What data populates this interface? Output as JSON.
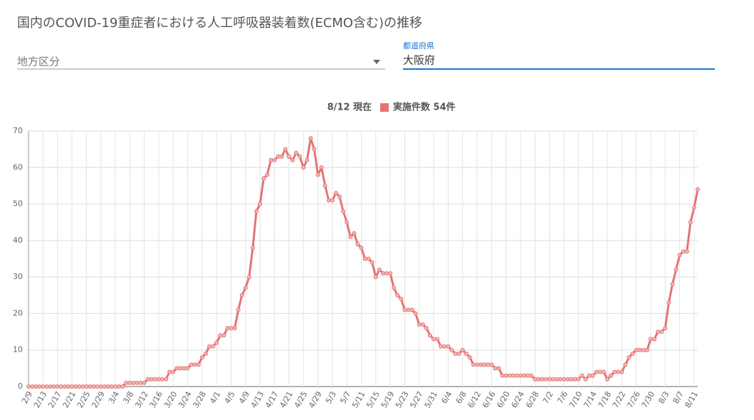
{
  "page": {
    "title": "国内のCOVID-19重症者における人工呼吸器装着数(ECMO含む)の推移",
    "region_select": {
      "placeholder": "地方区分"
    },
    "prefecture_select": {
      "label": "都道府県",
      "value": "大阪府"
    }
  },
  "chart_data": {
    "type": "line",
    "subtitle": "8/12 現在",
    "categories": [
      "2/9",
      null,
      null,
      null,
      "2/13",
      null,
      null,
      null,
      "2/17",
      null,
      null,
      null,
      "2/21",
      null,
      null,
      null,
      "2/25",
      null,
      null,
      null,
      "2/29",
      null,
      null,
      null,
      "3/4",
      null,
      null,
      null,
      "3/8",
      null,
      null,
      null,
      "3/12",
      null,
      null,
      null,
      "3/16",
      null,
      null,
      null,
      "3/20",
      null,
      null,
      null,
      "3/24",
      null,
      null,
      null,
      "3/28",
      null,
      null,
      null,
      "4/1",
      null,
      null,
      null,
      "4/5",
      null,
      null,
      null,
      "4/9",
      null,
      null,
      null,
      "4/13",
      null,
      null,
      null,
      "4/17",
      null,
      null,
      null,
      "4/21",
      null,
      null,
      null,
      "4/25",
      null,
      null,
      null,
      "4/29",
      null,
      null,
      null,
      "5/3",
      null,
      null,
      null,
      "5/7",
      null,
      null,
      null,
      "5/11",
      null,
      null,
      null,
      "5/15",
      null,
      null,
      null,
      "5/19",
      null,
      null,
      null,
      "5/23",
      null,
      null,
      null,
      "5/27",
      null,
      null,
      null,
      "5/31",
      null,
      null,
      null,
      "6/4",
      null,
      null,
      null,
      "6/8",
      null,
      null,
      null,
      "6/12",
      null,
      null,
      null,
      "6/16",
      null,
      null,
      null,
      "6/20",
      null,
      null,
      null,
      "6/24",
      null,
      null,
      null,
      "6/28",
      null,
      null,
      null,
      "7/2",
      null,
      null,
      null,
      "7/6",
      null,
      null,
      null,
      "7/10",
      null,
      null,
      null,
      "7/14",
      null,
      null,
      null,
      "7/18",
      null,
      null,
      null,
      "7/22",
      null,
      null,
      null,
      "7/26",
      null,
      null,
      null,
      "7/30",
      null,
      null,
      null,
      "8/3",
      null,
      null,
      null,
      "8/7",
      null,
      null,
      null,
      "8/11",
      null
    ],
    "series": [
      {
        "name": "実施件数 54件",
        "color": "#e57373",
        "values": [
          0,
          0,
          0,
          0,
          0,
          0,
          0,
          0,
          0,
          0,
          0,
          0,
          0,
          0,
          0,
          0,
          0,
          0,
          0,
          0,
          0,
          0,
          0,
          0,
          0,
          0,
          0,
          1,
          1,
          1,
          1,
          1,
          1,
          2,
          2,
          2,
          2,
          2,
          2,
          4,
          4,
          5,
          5,
          5,
          5,
          6,
          6,
          6,
          8,
          9,
          11,
          11,
          12,
          14,
          14,
          16,
          16,
          16,
          21,
          25,
          27,
          30,
          38,
          48,
          50,
          57,
          58,
          62,
          62,
          63,
          63,
          65,
          63,
          62,
          64,
          63,
          60,
          62,
          68,
          65,
          58,
          60,
          55,
          51,
          51,
          53,
          52,
          48,
          45,
          41,
          42,
          39,
          38,
          35,
          35,
          34,
          30,
          32,
          31,
          31,
          31,
          27,
          25,
          24,
          21,
          21,
          21,
          20,
          17,
          17,
          16,
          14,
          13,
          13,
          11,
          11,
          11,
          10,
          9,
          9,
          10,
          9,
          8,
          6,
          6,
          6,
          6,
          6,
          6,
          5,
          5,
          3,
          3,
          3,
          3,
          3,
          3,
          3,
          3,
          3,
          2,
          2,
          2,
          2,
          2,
          2,
          2,
          2,
          2,
          2,
          2,
          2,
          2,
          3,
          2,
          3,
          3,
          4,
          4,
          4,
          2,
          3,
          4,
          4,
          4,
          6,
          8,
          9,
          10,
          10,
          10,
          10,
          13,
          13,
          15,
          15,
          16,
          23,
          28,
          32,
          36,
          37,
          37,
          45,
          49,
          54
        ]
      }
    ],
    "ylim": [
      0,
      70
    ],
    "yticks": [
      0,
      10,
      20,
      30,
      40,
      50,
      60,
      70
    ],
    "grid": true
  }
}
